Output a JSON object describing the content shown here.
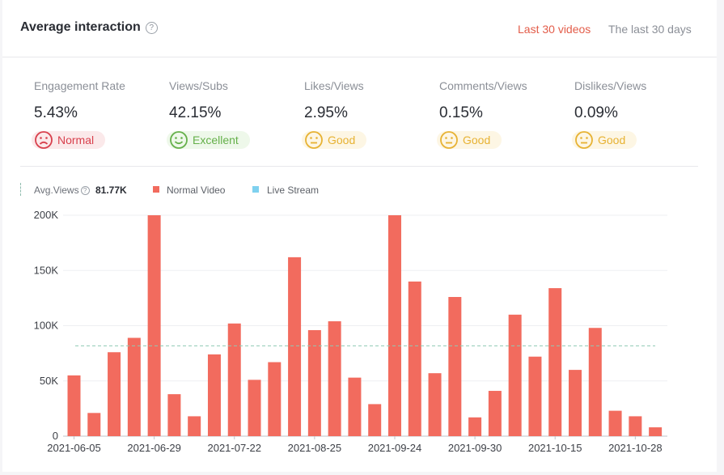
{
  "header": {
    "title": "Average interaction",
    "help_glyph": "?",
    "tabs": [
      {
        "label": "Last 30 videos",
        "active": true
      },
      {
        "label": "The last 30 days",
        "active": false
      }
    ]
  },
  "metrics": [
    {
      "label": "Engagement Rate",
      "value": "5.43%",
      "rating": "Normal",
      "face": "frown-icon",
      "color": "#d8404d"
    },
    {
      "label": "Views/Subs",
      "value": "42.15%",
      "rating": "Excellent",
      "face": "smile-icon",
      "color": "#65b04a"
    },
    {
      "label": "Likes/Views",
      "value": "2.95%",
      "rating": "Good",
      "face": "neutral-face-icon",
      "color": "#e7b233"
    },
    {
      "label": "Comments/Views",
      "value": "0.15%",
      "rating": "Good",
      "face": "neutral-face-icon",
      "color": "#e7b233"
    },
    {
      "label": "Dislikes/Views",
      "value": "0.09%",
      "rating": "Good",
      "face": "neutral-face-icon",
      "color": "#e7b233"
    }
  ],
  "legend": {
    "avg_label": "Avg.Views",
    "avg_value": "81.77K",
    "normal_label": "Normal Video",
    "live_label": "Live Stream",
    "normal_color": "#f26b5e",
    "live_color": "#7fd1ef"
  },
  "chart_data": {
    "type": "bar",
    "series": [
      {
        "name": "Normal Video",
        "values": [
          55000,
          21000,
          76000,
          89000,
          200000,
          38000,
          18000,
          74000,
          102000,
          51000,
          67000,
          162000,
          96000,
          104000,
          53000,
          29000,
          200000,
          140000,
          57000,
          126000,
          17000,
          41000,
          110000,
          72000,
          134000,
          60000,
          98000,
          23000,
          18000,
          8000
        ]
      }
    ],
    "x_tick_labels": [
      "2021-06-05",
      "2021-06-29",
      "2021-07-22",
      "2021-08-25",
      "2021-09-24",
      "2021-09-30",
      "2021-10-15",
      "2021-10-28"
    ],
    "x_tick_positions": [
      0,
      4,
      8,
      12,
      16,
      20,
      24,
      28
    ],
    "y_ticks": [
      0,
      50000,
      100000,
      150000,
      200000
    ],
    "y_tick_labels": [
      "0",
      "50K",
      "100K",
      "150K",
      "200K"
    ],
    "ylim": [
      0,
      200000
    ],
    "average": 81770,
    "grid": true
  }
}
